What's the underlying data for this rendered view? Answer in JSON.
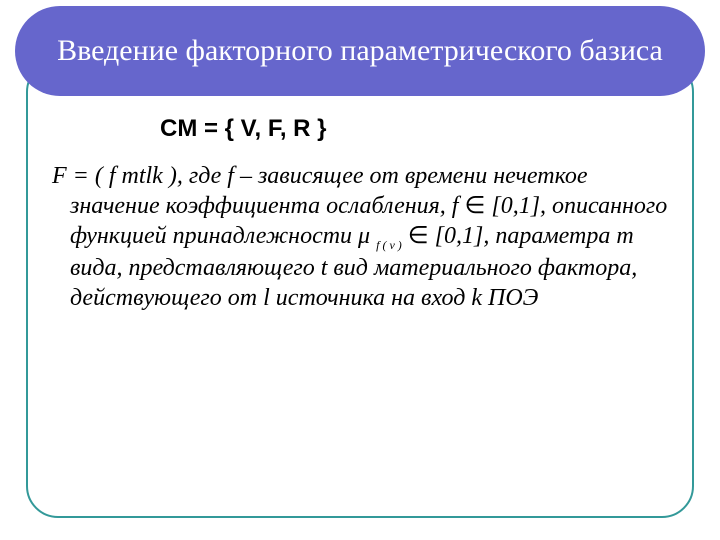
{
  "slide": {
    "title": "Введение факторного параметрического базиса",
    "formula": "CM = { V, F, R }",
    "body_parts": {
      "p1": "F = ( f mtlk ), где  f – зависящее от времени нечеткое значение коэффициента ослабления, f ",
      "elem1": "∈",
      "p2": " [0,1], описанного функцией принадлежности  μ ",
      "musub": "f ( ν )",
      "elem2": " ∈",
      "p3": " [0,1],  параметра  m  вида, представляющего  t вид материального фактора, действующего от l источника на вход  k  ПОЭ"
    }
  },
  "style": {
    "banner_bg": "#6666cc",
    "banner_text": "#ffffff",
    "frame_border": "#339999",
    "body_color": "#000000",
    "title_fontsize": 30,
    "formula_fontsize": 24,
    "body_fontsize": 24
  }
}
